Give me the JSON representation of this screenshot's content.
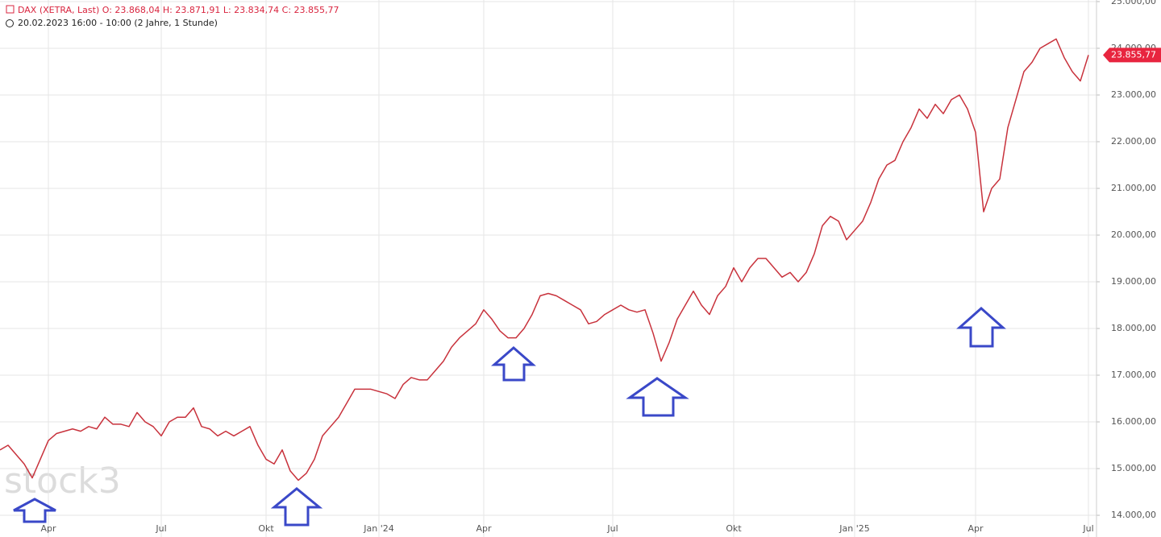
{
  "chart_data": {
    "type": "line",
    "title": "DAX (XETRA, Last)  O: 23.868,04  H: 23.871,91  L: 23.834,74  C: 23.855,77",
    "subtitle": "20.02.2023 16:00 - 10:00  (2 Jahre, 1 Stunde)",
    "watermark": "stock3",
    "color": "#c8323c",
    "grid": true,
    "categories": [
      null,
      null,
      null,
      null,
      null,
      null,
      "Apr",
      null,
      null,
      null,
      null,
      null,
      null,
      null,
      null,
      null,
      null,
      null,
      null,
      null,
      "Jul",
      null,
      null,
      null,
      null,
      null,
      null,
      null,
      null,
      null,
      null,
      null,
      null,
      "Okt",
      null,
      null,
      null,
      null,
      null,
      null,
      null,
      null,
      null,
      null,
      null,
      null,
      null,
      "Jan '24",
      null,
      null,
      null,
      null,
      null,
      null,
      null,
      null,
      null,
      null,
      null,
      null,
      "Apr",
      null,
      null,
      null,
      null,
      null,
      null,
      null,
      null,
      null,
      null,
      null,
      null,
      null,
      null,
      null,
      "Jul",
      null,
      null,
      null,
      null,
      null,
      null,
      null,
      null,
      null,
      null,
      null,
      null,
      null,
      null,
      "Okt",
      null,
      null,
      null,
      null,
      null,
      null,
      null,
      null,
      null,
      null,
      null,
      null,
      null,
      null,
      "Jan '25",
      null,
      null,
      null,
      null,
      null,
      null,
      null,
      null,
      null,
      null,
      null,
      null,
      null,
      null,
      "Apr",
      null,
      null,
      null,
      null,
      null,
      null,
      null,
      null,
      null,
      null,
      null,
      null,
      null,
      "Jul"
    ],
    "values": [
      15400,
      15500,
      15300,
      15100,
      14800,
      15200,
      15600,
      15750,
      15800,
      15850,
      15800,
      15900,
      15850,
      16100,
      15950,
      15950,
      15900,
      16200,
      16000,
      15900,
      15700,
      16000,
      16100,
      16100,
      16300,
      15900,
      15850,
      15700,
      15800,
      15700,
      15800,
      15900,
      15500,
      15200,
      15100,
      15400,
      14950,
      14750,
      14900,
      15200,
      15700,
      15900,
      16100,
      16400,
      16700,
      16700,
      16700,
      16650,
      16600,
      16500,
      16800,
      16950,
      16900,
      16900,
      17100,
      17300,
      17600,
      17800,
      17950,
      18100,
      18400,
      18200,
      17950,
      17800,
      17800,
      18000,
      18300,
      18700,
      18750,
      18700,
      18600,
      18500,
      18400,
      18100,
      18150,
      18300,
      18400,
      18500,
      18400,
      18350,
      18400,
      17900,
      17300,
      17700,
      18200,
      18500,
      18800,
      18500,
      18300,
      18700,
      18900,
      19300,
      19000,
      19300,
      19500,
      19500,
      19300,
      19100,
      19200,
      19000,
      19200,
      19600,
      20200,
      20400,
      20300,
      19900,
      20100,
      20300,
      20700,
      21200,
      21500,
      21600,
      22000,
      22300,
      22700,
      22500,
      22800,
      22600,
      22900,
      23000,
      22700,
      22200,
      20500,
      21000,
      21200,
      22300,
      22900,
      23500,
      23700,
      24000,
      24100,
      24200,
      23800,
      23500,
      23300,
      23855.77
    ],
    "ylim": [
      13535,
      25034
    ],
    "yticks": [
      {
        "value": 14000,
        "label": "14.000,00"
      },
      {
        "value": 15000,
        "label": "15.000,00"
      },
      {
        "value": 16000,
        "label": "16.000,00"
      },
      {
        "value": 17000,
        "label": "17.000,00"
      },
      {
        "value": 18000,
        "label": "18.000,00"
      },
      {
        "value": 19000,
        "label": "19.000,00"
      },
      {
        "value": 20000,
        "label": "20.000,00"
      },
      {
        "value": 21000,
        "label": "21.000,00"
      },
      {
        "value": 22000,
        "label": "22.000,00"
      },
      {
        "value": 23000,
        "label": "23.000,00"
      },
      {
        "value": 24000,
        "label": "24.000,00"
      },
      {
        "value": 25000,
        "label": "25.000,00"
      }
    ],
    "last_price": {
      "value": 23855.77,
      "label": "23.855,77",
      "color": "#e8253f"
    }
  }
}
